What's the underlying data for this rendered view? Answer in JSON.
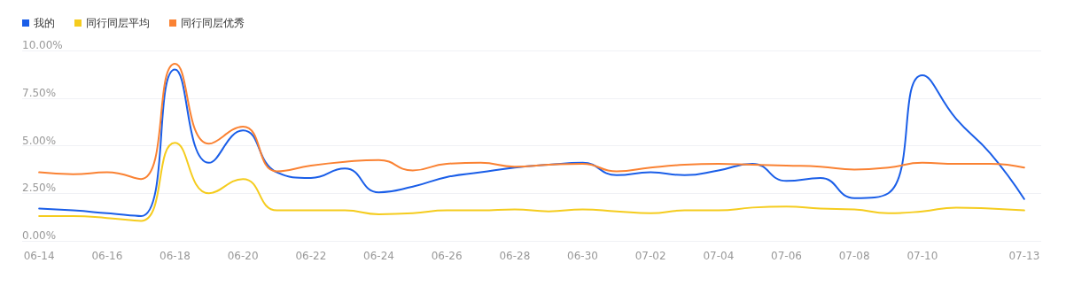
{
  "chart_data": {
    "type": "line",
    "categories": [
      "06-14",
      null,
      "06-16",
      null,
      "06-18",
      null,
      "06-20",
      null,
      "06-22",
      null,
      "06-24",
      null,
      "06-26",
      null,
      "06-28",
      null,
      "06-30",
      null,
      "07-02",
      null,
      "07-04",
      null,
      "07-06",
      null,
      "07-08",
      null,
      "07-10",
      null,
      null,
      "07-13"
    ],
    "series": [
      {
        "name": "我的",
        "color": "#1a5ee8",
        "values": [
          1.7,
          1.6,
          1.45,
          1.3,
          9.0,
          4.1,
          5.8,
          3.6,
          3.3,
          3.8,
          2.55,
          2.85,
          3.35,
          3.6,
          3.85,
          4.0,
          4.1,
          3.45,
          3.6,
          3.45,
          3.7,
          4.05,
          3.15,
          3.3,
          2.25,
          2.5,
          8.7,
          6.4,
          4.6,
          2.2
        ]
      },
      {
        "name": "同行同层平均",
        "color": "#f5cc1e",
        "values": [
          1.3,
          1.3,
          1.2,
          1.05,
          5.15,
          2.5,
          3.25,
          1.6,
          1.6,
          1.6,
          1.4,
          1.45,
          1.6,
          1.6,
          1.65,
          1.55,
          1.65,
          1.55,
          1.45,
          1.6,
          1.6,
          1.75,
          1.8,
          1.7,
          1.65,
          1.45,
          1.55,
          1.75,
          1.7,
          1.6
        ]
      },
      {
        "name": "同行同层优秀",
        "color": "#fa8233",
        "values": [
          3.6,
          3.5,
          3.6,
          3.25,
          9.3,
          5.1,
          6.0,
          3.65,
          3.95,
          4.15,
          4.25,
          3.7,
          4.05,
          4.1,
          3.9,
          4.0,
          4.05,
          3.65,
          3.85,
          4.0,
          4.05,
          4.0,
          3.95,
          3.9,
          3.75,
          3.85,
          4.1,
          4.05,
          4.05,
          3.85
        ]
      }
    ],
    "ylim": [
      0,
      10
    ],
    "yticks": [
      {
        "value": 0,
        "label": "0.00%"
      },
      {
        "value": 2.5,
        "label": "2.50%"
      },
      {
        "value": 5,
        "label": "5.00%"
      },
      {
        "value": 7.5,
        "label": "7.50%"
      },
      {
        "value": 10,
        "label": "10.00%"
      }
    ],
    "grid": "y",
    "legend": "top left",
    "marker": "none",
    "line_style": "solid"
  }
}
